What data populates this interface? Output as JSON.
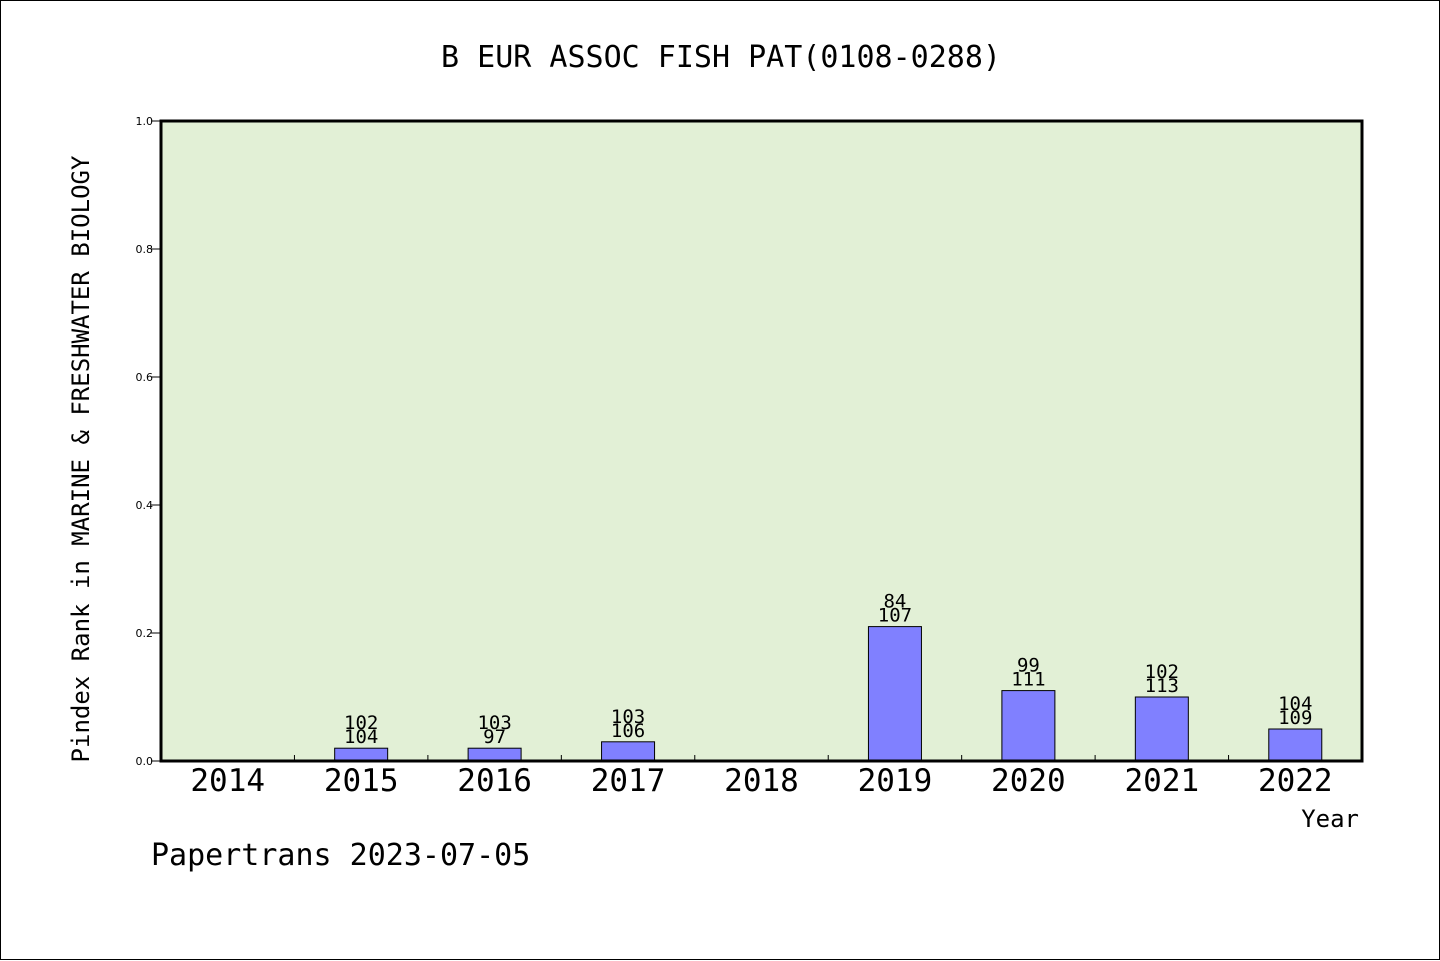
{
  "chart_data": {
    "type": "bar",
    "title": "B EUR ASSOC FISH PAT(0108-0288)",
    "xlabel": "Year",
    "ylabel": "Pindex Rank in MARINE & FRESHWATER BIOLOGY",
    "ylim": [
      0,
      1.0
    ],
    "yticks": [
      "0.0",
      "0.2",
      "0.4",
      "0.6",
      "0.8",
      "1.0"
    ],
    "categories": [
      "2014",
      "2015",
      "2016",
      "2017",
      "2018",
      "2019",
      "2020",
      "2021",
      "2022"
    ],
    "values": [
      null,
      0.02,
      0.02,
      0.03,
      null,
      0.21,
      0.11,
      0.1,
      0.05
    ],
    "labels_top": [
      "",
      "102",
      "103",
      "103",
      "",
      "84",
      "99",
      "102",
      "104"
    ],
    "labels_bottom": [
      "",
      "104",
      "97",
      "106",
      "",
      "107",
      "111",
      "113",
      "109"
    ],
    "grid": false,
    "colors": {
      "bar": "#8080ff",
      "plot_bg": "#e2f0d6",
      "axis": "#000000"
    }
  },
  "footer": "Papertrans 2023-07-05"
}
